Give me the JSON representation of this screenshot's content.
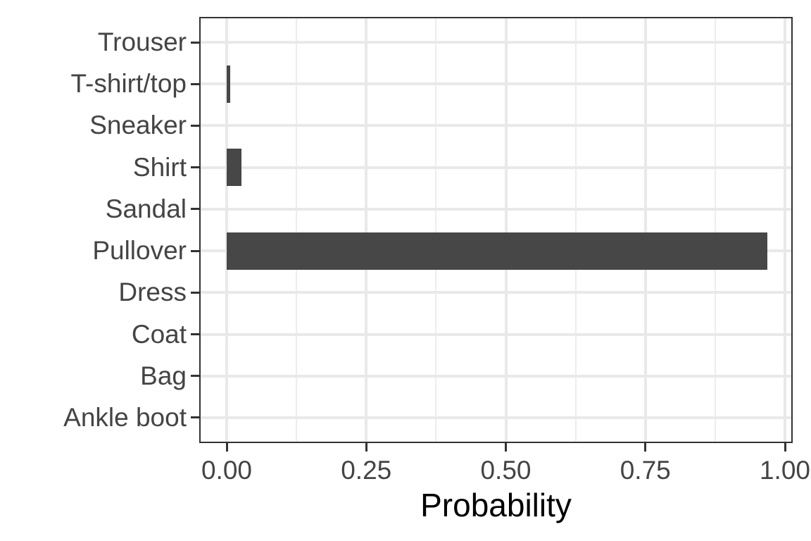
{
  "chart_data": {
    "type": "bar",
    "orientation": "horizontal",
    "title": "",
    "xlabel": "Probability",
    "ylabel": "",
    "categories": [
      "Trouser",
      "T-shirt/top",
      "Sneaker",
      "Shirt",
      "Sandal",
      "Pullover",
      "Dress",
      "Coat",
      "Bag",
      "Ankle boot"
    ],
    "values": [
      0,
      0.006,
      0,
      0.027,
      0,
      0.968,
      0,
      0,
      0,
      0
    ],
    "xlim": [
      0,
      1
    ],
    "x_tick_labels": [
      "0.00",
      "0.25",
      "0.50",
      "0.75",
      "1.00"
    ],
    "x_tick_values": [
      0,
      0.25,
      0.5,
      0.75,
      1.0
    ],
    "x_minor_tick_values": [
      0.125,
      0.375,
      0.625,
      0.875
    ],
    "grid": "on",
    "legend": "none",
    "colors": {
      "bar": "#474747",
      "grid_major": "#e9e9e9",
      "grid_minor": "#ededed",
      "panel_border": "#333333",
      "tick_mark": "#333333",
      "axis_text": "#444444",
      "axis_title": "#000000",
      "background": "#ffffff"
    }
  }
}
